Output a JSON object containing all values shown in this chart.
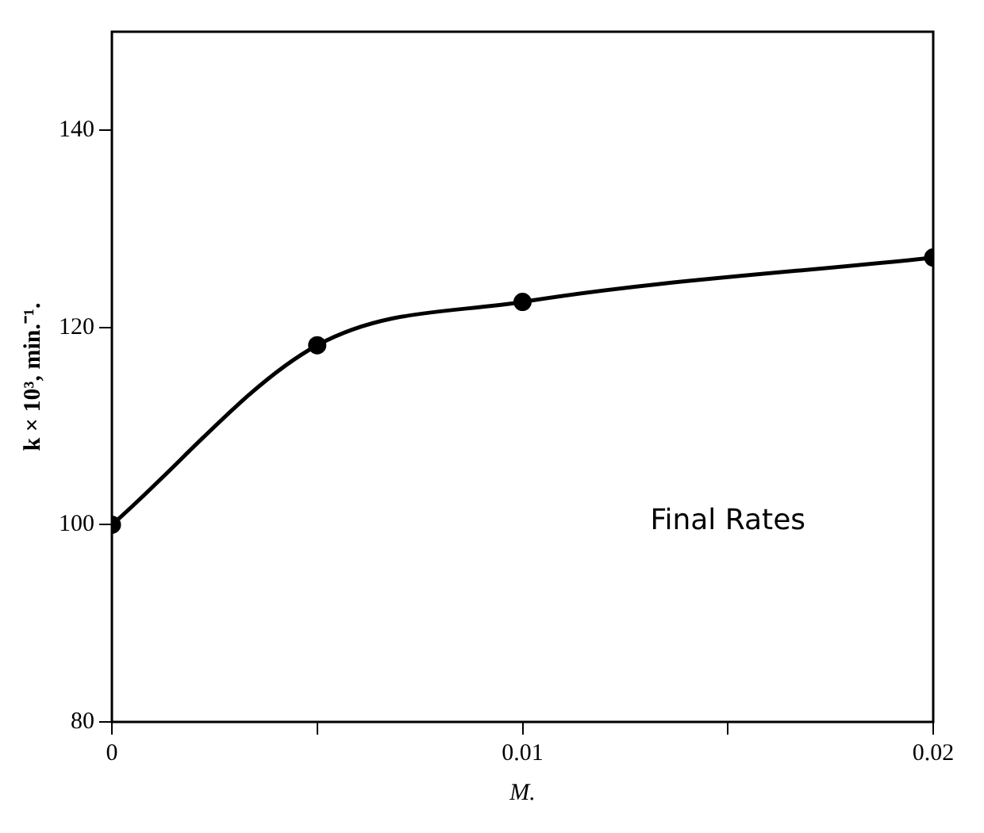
{
  "chart_data": {
    "type": "line",
    "xlabel": "M.",
    "ylabel": "k × 10³, min.⁻¹.",
    "x": [
      0,
      0.005,
      0.01,
      0.02
    ],
    "series": [
      {
        "color": "#000000",
        "values": [
          100,
          118.2,
          122.6,
          127.1
        ]
      }
    ],
    "xlim": [
      0,
      0.02
    ],
    "xticks": [
      0,
      {
        "value": 0.005,
        "label": null
      },
      0.01,
      {
        "value": 0.015,
        "label": null
      },
      0.02
    ],
    "ylim": [
      80,
      150
    ],
    "yticks": [
      80,
      100,
      120,
      140
    ],
    "annotations": [
      "Final Rates"
    ],
    "grid": false,
    "legend": false,
    "marker": "circle",
    "line_style": "solid"
  }
}
